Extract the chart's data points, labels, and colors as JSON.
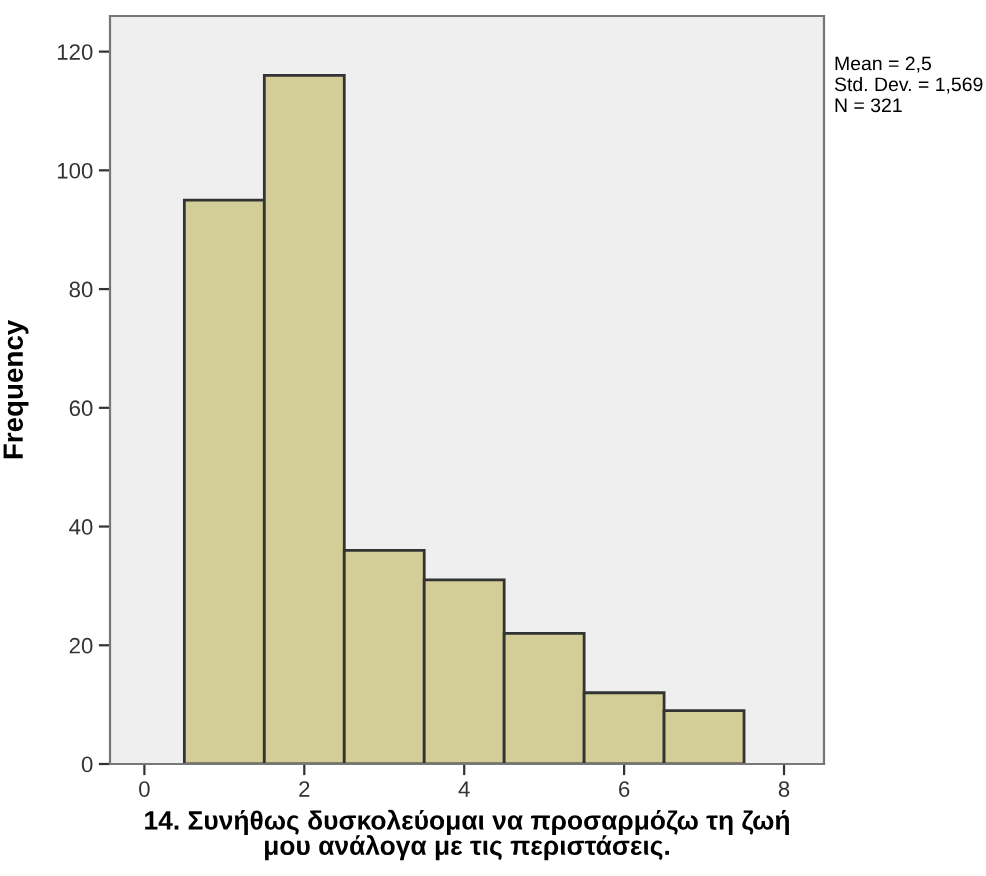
{
  "chart_data": {
    "type": "histogram",
    "xlabel": "14. Συνήθως δυσκολεύομαι να προσαρμόζω τη ζωή\nμου ανάλογα με τις περιστάσεις.",
    "ylabel": "Frequency",
    "bins": [
      0.5,
      1.5,
      2.5,
      3.5,
      4.5,
      5.5,
      6.5,
      7.5
    ],
    "values": [
      95,
      116,
      36,
      31,
      22,
      12,
      9
    ],
    "color": "#d3ce97",
    "xlim": [
      -0.43,
      8.5
    ],
    "xticks": [
      0,
      2,
      4,
      6,
      8
    ],
    "ylim": [
      0,
      126
    ],
    "yticks": [
      0,
      20,
      40,
      60,
      80,
      100,
      120
    ],
    "grid": false,
    "legend": false,
    "annotations": [
      "Mean = 2,5\nStd. Dev. = 1,569\nN = 321"
    ]
  }
}
